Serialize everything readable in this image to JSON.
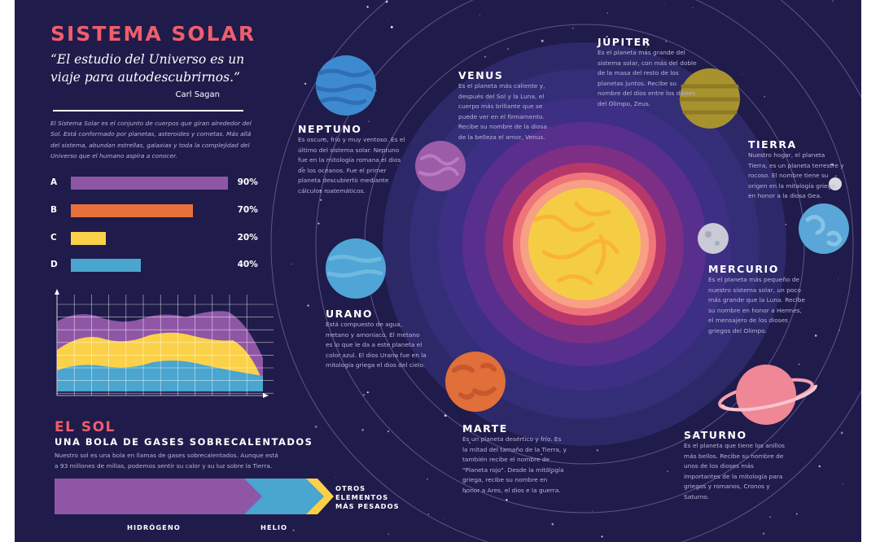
{
  "title": "SISTEMA SOLAR",
  "quote": "“El estudio del Universo es un viaje para autodescubrirnos.”",
  "quote_author": "Carl Sagan",
  "intro": "El Sistema Solar es el conjunto de cuerpos que giran alrededor del Sol. Está conformado por planetas, asteroides y cometas. Más allá del sistema, abundan estrellas, galaxias y toda la complejidad del Universo que el humano aspira a conocer.",
  "bars": [
    {
      "label": "A",
      "value": 90,
      "value_text": "90%",
      "color": "#8f56a6"
    },
    {
      "label": "B",
      "value": 70,
      "value_text": "70%",
      "color": "#e8703b"
    },
    {
      "label": "C",
      "value": 20,
      "value_text": "20%",
      "color": "#fad149"
    },
    {
      "label": "D",
      "value": 40,
      "value_text": "40%",
      "color": "#4aa5cf"
    }
  ],
  "sun": {
    "title": "EL SOL",
    "subtitle": "UNA BOLA DE GASES SOBRECALENTADOS",
    "text": "Nuestro sol es una bola en llamas de gases sobrecalentados. Aunque está a 93 millones de millas, podemos sentir su calor y su luz sobre la Tierra.",
    "gases": {
      "hidrogeno": "HIDRÓGENO",
      "helio": "HELIO",
      "otros": "OTROS ELEMENTOS MÁS PESADOS"
    }
  },
  "planets": {
    "neptuno": {
      "name": "NEPTUNO",
      "desc": "Es oscuro, frío y muy ventoso. Es el último del sistema solar. Neptuno fue en la mitología romana el dios de los océanos. Fue el primer planeta descubierto mediante cálculos matemáticos."
    },
    "venus": {
      "name": "VENUS",
      "desc": "Es el planeta más caliente y, después del Sol y la Luna, el cuerpo más brillante que se puede ver en el firmamento. Recibe su nombre de la diosa de la belleza el amor, Venus."
    },
    "jupiter": {
      "name": "JÚPITER",
      "desc": "Es el planeta más grande del sistema solar, con más del doble de la masa del resto de los planetas juntos. Recibe su nombre del dios entre los dioses del Olimpo, Zeus."
    },
    "tierra": {
      "name": "TIERRA",
      "desc": "Nuestro hogar, el planeta Tierra, es un planeta terrestre y rocoso. El nombre tiene su origen en la mitología griega, en honor a la diosa Gea."
    },
    "mercurio": {
      "name": "MERCURIO",
      "desc": "Es el planeta más pequeño de nuestro sistema solar, un poco más grande que la Luna. Recibe su nombre en honor a Hermes, el mensajero de los dioses griegos del Olimpo."
    },
    "urano": {
      "name": "URANO",
      "desc": "Está compuesto de agua, metano y amoníaco. El metano es lo que le da a este planeta el color azul. El dios Urano fue en la mitología griega el dios del cielo."
    },
    "marte": {
      "name": "MARTE",
      "desc": "Es un planeta desértico y frío. Es la mitad del tamaño de la Tierra, y también recibe el nombre de \"Planeta rojo\". Desde la mitología griega, recibe su nombre en honor a Ares, el dios e la guerra."
    },
    "saturno": {
      "name": "SATURNO",
      "desc": "Es el planeta que tiene los anillos más bellos. Recibe su nombre de unos de los dioses más importantes de la mitología para griegos y romanos, Cronos y Saturno."
    }
  },
  "colors": {
    "background": "#1f1b4a",
    "title": "#ee5e6c",
    "text": "#b9b5d8"
  }
}
